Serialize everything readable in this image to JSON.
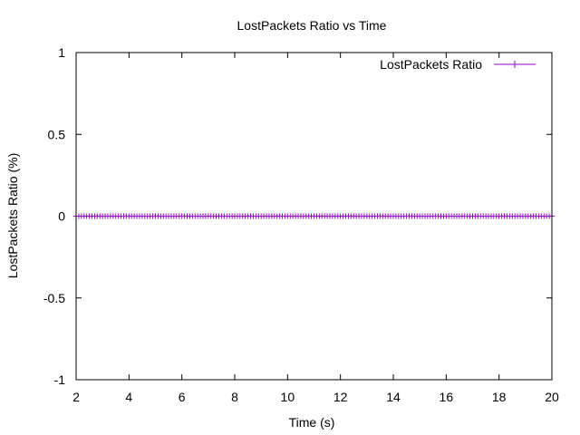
{
  "chart_data": {
    "type": "line",
    "title": "LostPackets Ratio vs Time",
    "xlabel": "Time (s)",
    "ylabel": "LostPackets Ratio (%)",
    "xlim": [
      2,
      20
    ],
    "ylim": [
      -1,
      1
    ],
    "x_ticks": [
      2,
      4,
      6,
      8,
      10,
      12,
      14,
      16,
      18,
      20
    ],
    "x_tick_labels": [
      "2",
      "4",
      "6",
      "8",
      "10",
      "12",
      "14",
      "16",
      "18",
      "20"
    ],
    "y_ticks": [
      -1,
      -0.5,
      0,
      0.5,
      1
    ],
    "y_tick_labels": [
      "-1",
      "-0.5",
      "0",
      "0.5",
      "1"
    ],
    "grid": false,
    "legend_position": "top-right",
    "series": [
      {
        "name": "LostPackets Ratio",
        "color": "#9400d3",
        "marker": "plus",
        "x_start": 2,
        "x_end": 20,
        "x_step": 0.1,
        "y_constant": 0
      }
    ]
  }
}
